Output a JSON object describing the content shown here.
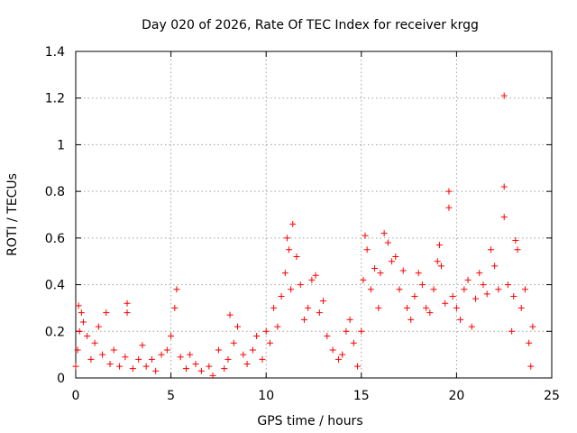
{
  "chart_data": {
    "type": "scatter",
    "title": "Day 020 of 2026, Rate Of TEC Index for receiver krgg",
    "xlabel": "GPS time / hours",
    "ylabel": "ROTI / TECUs",
    "xlim": [
      0,
      25
    ],
    "ylim": [
      0,
      1.4
    ],
    "x_ticks": [
      0,
      5,
      10,
      15,
      20,
      25
    ],
    "x_tick_labels": [
      "0",
      "5",
      "10",
      "15",
      "20",
      "25"
    ],
    "y_ticks": [
      0,
      0.2,
      0.4,
      0.6,
      0.8,
      1.0,
      1.2,
      1.4
    ],
    "y_tick_labels": [
      "0",
      "0.2",
      "0.4",
      "0.6",
      "0.8",
      "1",
      "1.2",
      "1.4"
    ],
    "grid": true,
    "marker": "+",
    "color": "#ff0000",
    "series": [
      {
        "points": [
          [
            0.0,
            0.05
          ],
          [
            0.1,
            0.12
          ],
          [
            0.2,
            0.2
          ],
          [
            0.3,
            0.28
          ],
          [
            0.15,
            0.31
          ],
          [
            0.4,
            0.24
          ],
          [
            0.6,
            0.18
          ],
          [
            0.8,
            0.08
          ],
          [
            1.0,
            0.15
          ],
          [
            1.2,
            0.22
          ],
          [
            1.4,
            0.1
          ],
          [
            1.6,
            0.28
          ],
          [
            1.8,
            0.06
          ],
          [
            2.0,
            0.12
          ],
          [
            2.3,
            0.05
          ],
          [
            2.6,
            0.09
          ],
          [
            2.7,
            0.32
          ],
          [
            2.7,
            0.28
          ],
          [
            3.0,
            0.04
          ],
          [
            3.3,
            0.08
          ],
          [
            3.5,
            0.14
          ],
          [
            3.7,
            0.05
          ],
          [
            4.0,
            0.08
          ],
          [
            4.2,
            0.03
          ],
          [
            4.5,
            0.1
          ],
          [
            4.8,
            0.12
          ],
          [
            5.0,
            0.18
          ],
          [
            5.2,
            0.3
          ],
          [
            5.3,
            0.38
          ],
          [
            5.5,
            0.09
          ],
          [
            5.8,
            0.04
          ],
          [
            6.0,
            0.1
          ],
          [
            6.3,
            0.06
          ],
          [
            6.6,
            0.03
          ],
          [
            7.0,
            0.05
          ],
          [
            7.2,
            0.01
          ],
          [
            7.5,
            0.12
          ],
          [
            7.8,
            0.04
          ],
          [
            8.0,
            0.08
          ],
          [
            8.1,
            0.27
          ],
          [
            8.3,
            0.15
          ],
          [
            8.5,
            0.22
          ],
          [
            8.8,
            0.1
          ],
          [
            9.0,
            0.06
          ],
          [
            9.3,
            0.12
          ],
          [
            9.5,
            0.18
          ],
          [
            9.8,
            0.08
          ],
          [
            10.0,
            0.2
          ],
          [
            10.2,
            0.15
          ],
          [
            10.4,
            0.3
          ],
          [
            10.6,
            0.22
          ],
          [
            10.8,
            0.35
          ],
          [
            11.0,
            0.45
          ],
          [
            11.1,
            0.6
          ],
          [
            11.2,
            0.55
          ],
          [
            11.3,
            0.38
          ],
          [
            11.4,
            0.66
          ],
          [
            11.6,
            0.52
          ],
          [
            11.8,
            0.4
          ],
          [
            12.0,
            0.25
          ],
          [
            12.2,
            0.3
          ],
          [
            12.4,
            0.42
          ],
          [
            12.6,
            0.44
          ],
          [
            12.8,
            0.28
          ],
          [
            13.0,
            0.33
          ],
          [
            13.2,
            0.18
          ],
          [
            13.5,
            0.12
          ],
          [
            13.8,
            0.08
          ],
          [
            14.0,
            0.1
          ],
          [
            14.2,
            0.2
          ],
          [
            14.4,
            0.25
          ],
          [
            14.6,
            0.15
          ],
          [
            14.8,
            0.05
          ],
          [
            15.0,
            0.2
          ],
          [
            15.1,
            0.42
          ],
          [
            15.2,
            0.61
          ],
          [
            15.3,
            0.55
          ],
          [
            15.5,
            0.38
          ],
          [
            15.7,
            0.47
          ],
          [
            15.9,
            0.3
          ],
          [
            16.0,
            0.45
          ],
          [
            16.2,
            0.62
          ],
          [
            16.4,
            0.58
          ],
          [
            16.6,
            0.5
          ],
          [
            16.8,
            0.52
          ],
          [
            17.0,
            0.38
          ],
          [
            17.2,
            0.46
          ],
          [
            17.4,
            0.3
          ],
          [
            17.6,
            0.25
          ],
          [
            17.8,
            0.35
          ],
          [
            18.0,
            0.45
          ],
          [
            18.2,
            0.4
          ],
          [
            18.4,
            0.3
          ],
          [
            18.6,
            0.28
          ],
          [
            18.8,
            0.38
          ],
          [
            19.0,
            0.5
          ],
          [
            19.1,
            0.57
          ],
          [
            19.2,
            0.48
          ],
          [
            19.4,
            0.32
          ],
          [
            19.6,
            0.73
          ],
          [
            19.6,
            0.8
          ],
          [
            19.8,
            0.35
          ],
          [
            20.0,
            0.3
          ],
          [
            20.2,
            0.25
          ],
          [
            20.4,
            0.38
          ],
          [
            20.6,
            0.42
          ],
          [
            20.8,
            0.22
          ],
          [
            21.0,
            0.34
          ],
          [
            21.2,
            0.45
          ],
          [
            21.4,
            0.4
          ],
          [
            21.6,
            0.36
          ],
          [
            21.8,
            0.55
          ],
          [
            22.0,
            0.48
          ],
          [
            22.2,
            0.38
          ],
          [
            22.5,
            1.21
          ],
          [
            22.5,
            0.82
          ],
          [
            22.5,
            0.69
          ],
          [
            22.7,
            0.4
          ],
          [
            22.9,
            0.2
          ],
          [
            23.0,
            0.35
          ],
          [
            23.1,
            0.59
          ],
          [
            23.2,
            0.55
          ],
          [
            23.4,
            0.3
          ],
          [
            23.6,
            0.38
          ],
          [
            23.8,
            0.15
          ],
          [
            24.0,
            0.22
          ],
          [
            23.9,
            0.05
          ]
        ]
      }
    ]
  }
}
